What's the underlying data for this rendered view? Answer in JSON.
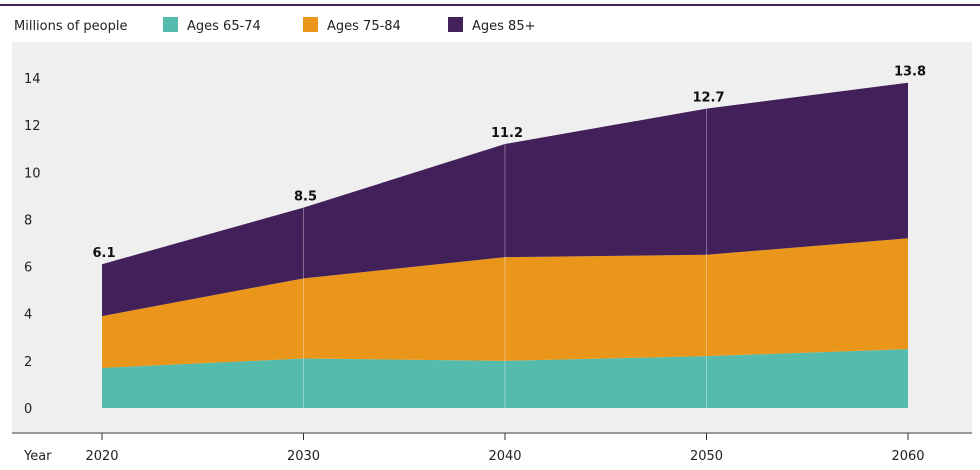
{
  "colors": {
    "ages_65_74": "#55bcad",
    "ages_75_84": "#e9961b",
    "ages_85_plus": "#42205a",
    "plot_background": "#efefef",
    "top_rule": "#42205a"
  },
  "chart_data": {
    "type": "area",
    "stacked": true,
    "unit_label": "Millions of people",
    "xlabel": "Year",
    "x": [
      "2020",
      "2030",
      "2040",
      "2050",
      "2060"
    ],
    "ylim": [
      0,
      14
    ],
    "y_ticks": [
      "0",
      "2",
      "4",
      "6",
      "8",
      "10",
      "12",
      "14"
    ],
    "grid": "vertical",
    "legend": "top",
    "series": [
      {
        "name": "Ages 65-74",
        "values": [
          1.7,
          2.1,
          2.0,
          2.2,
          2.5
        ]
      },
      {
        "name": "Ages 75-84",
        "values": [
          2.2,
          3.4,
          4.4,
          4.3,
          4.7
        ]
      },
      {
        "name": "Ages 85+",
        "values": [
          2.2,
          3.0,
          4.8,
          6.2,
          6.6
        ]
      }
    ],
    "totals": [
      6.1,
      8.5,
      11.2,
      12.7,
      13.8
    ],
    "total_labels": [
      "6.1",
      "8.5",
      "11.2",
      "12.7",
      "13.8"
    ]
  }
}
